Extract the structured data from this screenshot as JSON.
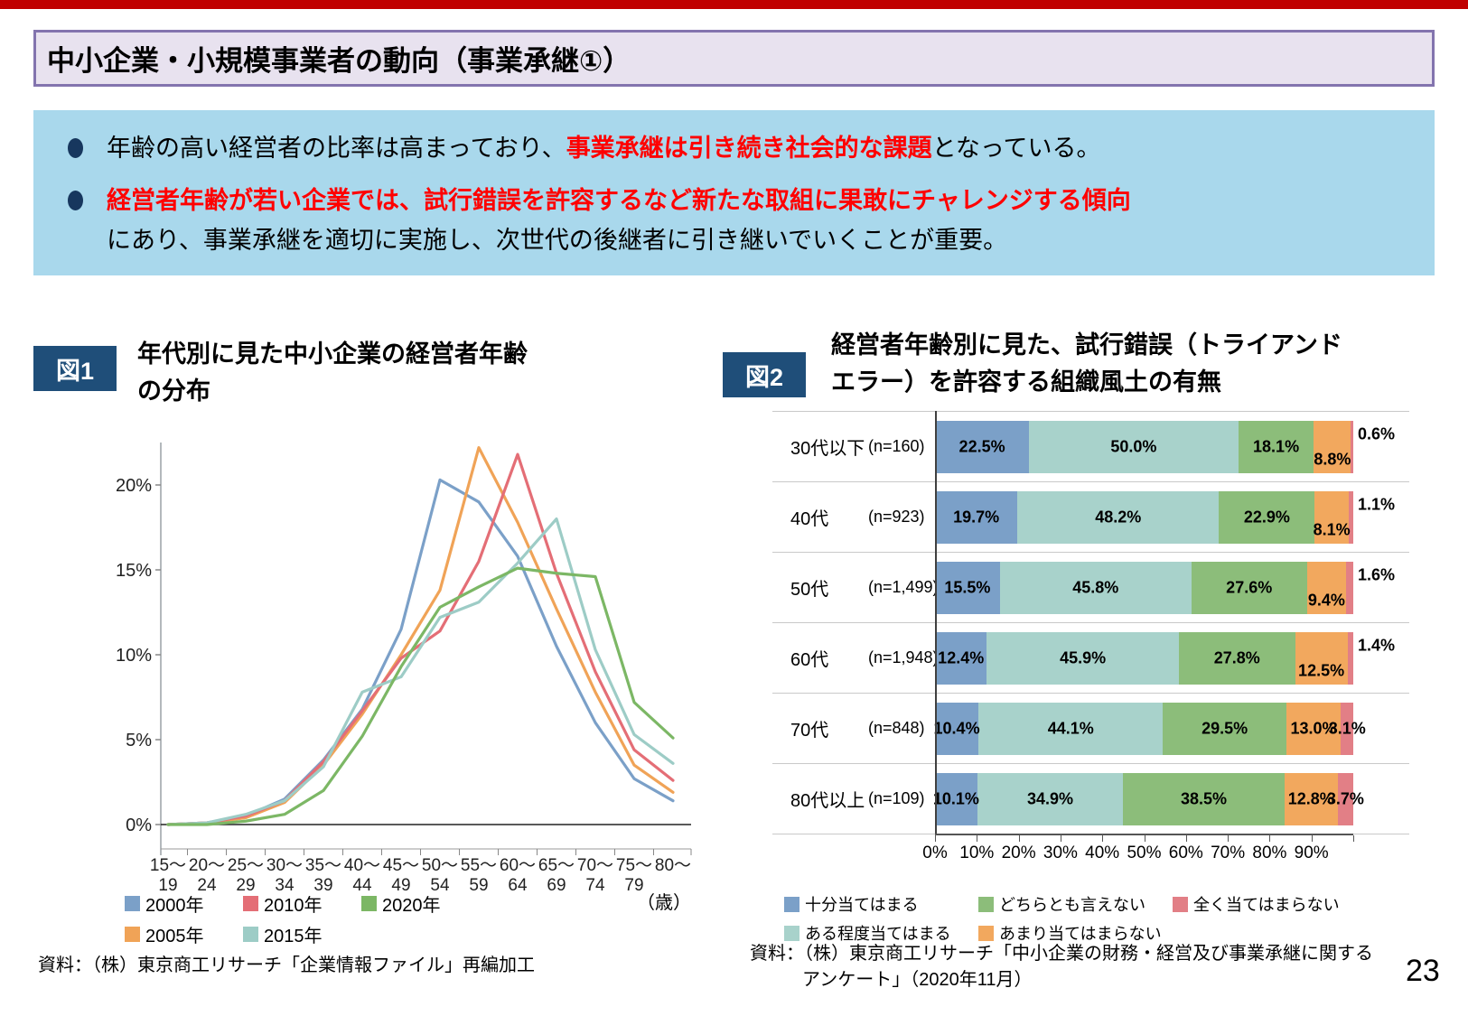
{
  "page": {
    "number": "23"
  },
  "colors": {
    "top_bar": "#c00000",
    "header_bg": "#e8e2ef",
    "header_border": "#8374ae",
    "summary_bg": "#a9d8ec",
    "bullet": "#17375e",
    "emphasis": "#ff0000",
    "badge_bg": "#1f4e79"
  },
  "header": {
    "title": "中小企業・小規模事業者の動向（事業承継①）"
  },
  "summary": {
    "bullets": [
      {
        "lines": [
          [
            {
              "text": "年齢の高い経営者の比率は高まっており、",
              "em": false
            },
            {
              "text": "事業承継は引き続き社会的な課題",
              "em": true
            },
            {
              "text": "となっている。",
              "em": false
            }
          ]
        ]
      },
      {
        "lines": [
          [
            {
              "text": "経営者年齢が若い企業では、試行錯誤を許容するなど新たな取組に果敢にチャレンジする傾向",
              "em": true
            }
          ],
          [
            {
              "text": "にあり、事業承継を適切に実施し、次世代の後継者に引き継いでいくことが重要。",
              "em": false
            }
          ]
        ]
      }
    ]
  },
  "fig1": {
    "badge": "図1",
    "title": "年代別に見た中小企業の経営者年齢\nの分布",
    "source": "資料：（株）東京商工リサーチ「企業情報ファイル」再編加工"
  },
  "fig2": {
    "badge": "図2",
    "title": "経営者年齢別に見た、試行錯誤（トライアンド\nエラー）を許容する組織風土の有無",
    "source_line1": "資料：（株）東京商工リサーチ「中小企業の財務・経営及び事業承継に関する",
    "source_line2": "アンケート」（2020年11月）"
  },
  "chart_data": [
    {
      "id": "fig1",
      "type": "line",
      "title": "年代別に見た中小企業の経営者年齢の分布",
      "categories": [
        "15〜19",
        "20〜24",
        "25〜29",
        "30〜34",
        "35〜39",
        "40〜44",
        "45〜49",
        "50〜54",
        "55〜59",
        "60〜64",
        "65〜69",
        "70〜74",
        "75〜79",
        "80〜"
      ],
      "x_unit": "（歳）",
      "ylim": [
        0,
        23
      ],
      "yticks": [
        0,
        5,
        10,
        15,
        20
      ],
      "series": [
        {
          "name": "2000年",
          "color": "#7ba0c8",
          "values": [
            0.0,
            0.1,
            0.5,
            1.5,
            3.8,
            6.8,
            11.5,
            20.3,
            19.0,
            15.8,
            10.5,
            6.0,
            2.7,
            1.4
          ]
        },
        {
          "name": "2005年",
          "color": "#f0a357",
          "values": [
            0.0,
            0.1,
            0.4,
            1.3,
            3.5,
            6.5,
            10.0,
            13.8,
            22.2,
            17.8,
            12.7,
            7.8,
            3.5,
            1.9
          ]
        },
        {
          "name": "2010年",
          "color": "#e46e76",
          "values": [
            0.0,
            0.1,
            0.5,
            1.4,
            3.7,
            6.7,
            9.8,
            11.4,
            15.5,
            21.8,
            14.8,
            9.0,
            4.4,
            2.6
          ]
        },
        {
          "name": "2015年",
          "color": "#9dccc6",
          "values": [
            0.0,
            0.1,
            0.6,
            1.4,
            3.4,
            7.8,
            8.7,
            12.2,
            13.1,
            15.4,
            18.0,
            10.3,
            5.3,
            3.6
          ]
        },
        {
          "name": "2020年",
          "color": "#7cb765",
          "values": [
            0.0,
            0.0,
            0.2,
            0.6,
            2.0,
            5.2,
            9.3,
            12.8,
            14.0,
            15.1,
            14.8,
            14.6,
            7.2,
            5.1
          ]
        }
      ],
      "legend_order": [
        "2000年",
        "2010年",
        "2020年",
        "2005年",
        "2015年"
      ]
    },
    {
      "id": "fig2",
      "type": "stacked-bar-horizontal",
      "title": "経営者年齢別に見た、試行錯誤（トライアンドエラー）を許容する組織風土の有無",
      "segments": [
        {
          "name": "十分当てはまる",
          "color": "#7ba0c8"
        },
        {
          "name": "ある程度当てはまる",
          "color": "#a8d2cb"
        },
        {
          "name": "どちらとも言えない",
          "color": "#8cbd7a"
        },
        {
          "name": "あまり当てはまらない",
          "color": "#f2a85e"
        },
        {
          "name": "全く当てはまらない",
          "color": "#e27f86"
        }
      ],
      "rows": [
        {
          "label": "30代以下",
          "n": "(n=160)",
          "values": [
            22.5,
            50.0,
            18.1,
            8.8,
            0.6
          ]
        },
        {
          "label": "40代",
          "n": "(n=923)",
          "values": [
            19.7,
            48.2,
            22.9,
            8.1,
            1.1
          ]
        },
        {
          "label": "50代",
          "n": "(n=1,499)",
          "values": [
            15.5,
            45.8,
            27.6,
            9.4,
            1.6
          ]
        },
        {
          "label": "60代",
          "n": "(n=1,948)",
          "values": [
            12.4,
            45.9,
            27.8,
            12.5,
            1.4
          ]
        },
        {
          "label": "70代",
          "n": "(n=848)",
          "values": [
            10.4,
            44.1,
            29.5,
            13.0,
            3.1
          ]
        },
        {
          "label": "80代以上",
          "n": "(n=109)",
          "values": [
            10.1,
            34.9,
            38.5,
            12.8,
            3.7
          ]
        }
      ],
      "xticks": [
        "0%",
        "10%",
        "20%",
        "30%",
        "40%",
        "50%",
        "60%",
        "70%",
        "80%",
        "90%"
      ],
      "legend_order": [
        "十分当てはまる",
        "どちらとも言えない",
        "全く当てはまらない",
        "ある程度当てはまる",
        "あまり当てはまらない"
      ]
    }
  ]
}
